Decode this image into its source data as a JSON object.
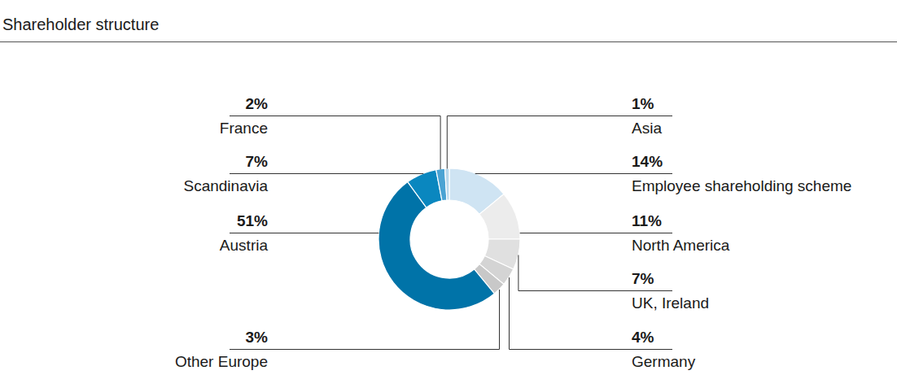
{
  "chart_data": {
    "type": "donut",
    "title": "Shareholder structure",
    "categories": [
      "Employee shareholding scheme",
      "North America",
      "UK, Ireland",
      "Germany",
      "Other Europe",
      "Austria",
      "Scandinavia",
      "France",
      "Asia"
    ],
    "values": [
      14,
      11,
      7,
      4,
      3,
      51,
      7,
      2,
      1
    ],
    "value_labels": [
      "14%",
      "11%",
      "7%",
      "4%",
      "3%",
      "51%",
      "7%",
      "2%",
      "1%"
    ],
    "colors": [
      "#cfe4f3",
      "#ececec",
      "#e0e0e0",
      "#d4d4d4",
      "#c8c8c8",
      "#0073a8",
      "#0a87bf",
      "#4aa3d3",
      "#b8d8ec"
    ],
    "data_labels": true
  }
}
